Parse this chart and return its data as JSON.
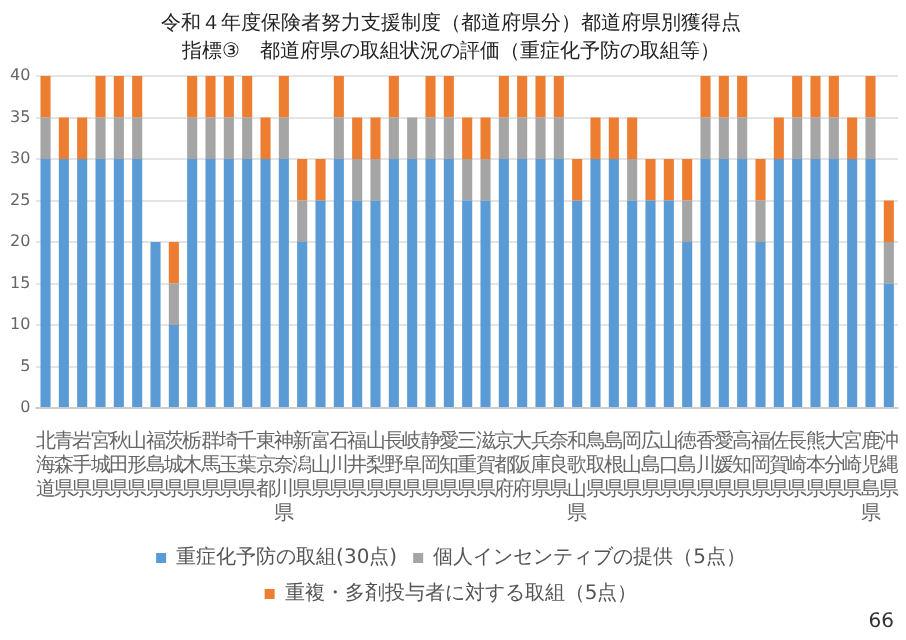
{
  "chart_data": {
    "type": "bar",
    "title": "令和４年度保険者努力支援制度（都道府県分）都道府県別獲得点",
    "subtitle": "指標③　都道府県の取組状況の評価（重症化予防の取組等）",
    "categories": [
      "北海道",
      "青森県",
      "岩手県",
      "宮城県",
      "秋田県",
      "山形県",
      "福島県",
      "茨城県",
      "栃木県",
      "群馬県",
      "埼玉県",
      "千葉県",
      "東京都",
      "神奈川県",
      "新潟県",
      "富山県",
      "石川県",
      "福井県",
      "山梨県",
      "長野県",
      "岐阜県",
      "静岡県",
      "愛知県",
      "三重県",
      "滋賀県",
      "京都府",
      "大阪府",
      "兵庫県",
      "奈良県",
      "和歌山県",
      "鳥取県",
      "島根県",
      "岡山県",
      "広島県",
      "山口県",
      "徳島県",
      "香川県",
      "愛媛県",
      "高知県",
      "福岡県",
      "佐賀県",
      "長崎県",
      "熊本県",
      "大分県",
      "宮崎県",
      "鹿児島県",
      "沖縄県"
    ],
    "series": [
      {
        "name": "重症化予防の取組(30点)",
        "color": "#5b9bd5",
        "values": [
          30,
          30,
          30,
          30,
          30,
          30,
          20,
          10,
          30,
          30,
          30,
          30,
          30,
          30,
          20,
          25,
          30,
          25,
          25,
          30,
          30,
          30,
          30,
          25,
          25,
          30,
          30,
          30,
          30,
          25,
          30,
          30,
          25,
          25,
          25,
          20,
          30,
          30,
          30,
          20,
          30,
          30,
          30,
          30,
          30,
          30,
          15
        ]
      },
      {
        "name": "個人インセンティブの提供（5点）",
        "color": "#a5a5a5",
        "values": [
          5,
          0,
          0,
          5,
          5,
          5,
          0,
          5,
          5,
          5,
          5,
          5,
          0,
          5,
          5,
          0,
          5,
          5,
          5,
          5,
          5,
          5,
          5,
          5,
          5,
          5,
          5,
          5,
          5,
          0,
          0,
          0,
          5,
          0,
          0,
          5,
          5,
          5,
          5,
          5,
          0,
          5,
          5,
          5,
          0,
          5,
          5
        ]
      },
      {
        "name": "重複・多剤投与者に対する取組（5点）",
        "color": "#ed7d31",
        "values": [
          5,
          5,
          5,
          5,
          5,
          5,
          0,
          5,
          5,
          5,
          5,
          5,
          5,
          5,
          5,
          5,
          5,
          5,
          5,
          5,
          0,
          5,
          5,
          5,
          5,
          5,
          5,
          5,
          5,
          5,
          5,
          5,
          5,
          5,
          5,
          5,
          5,
          5,
          5,
          5,
          5,
          5,
          5,
          5,
          5,
          5,
          5
        ]
      }
    ],
    "stacked": true,
    "ylim": [
      0,
      40
    ],
    "yticks": [
      0,
      5,
      10,
      15,
      20,
      25,
      30,
      35,
      40
    ],
    "grid": "y",
    "legend": "bottom",
    "annotations": [
      "66"
    ]
  }
}
